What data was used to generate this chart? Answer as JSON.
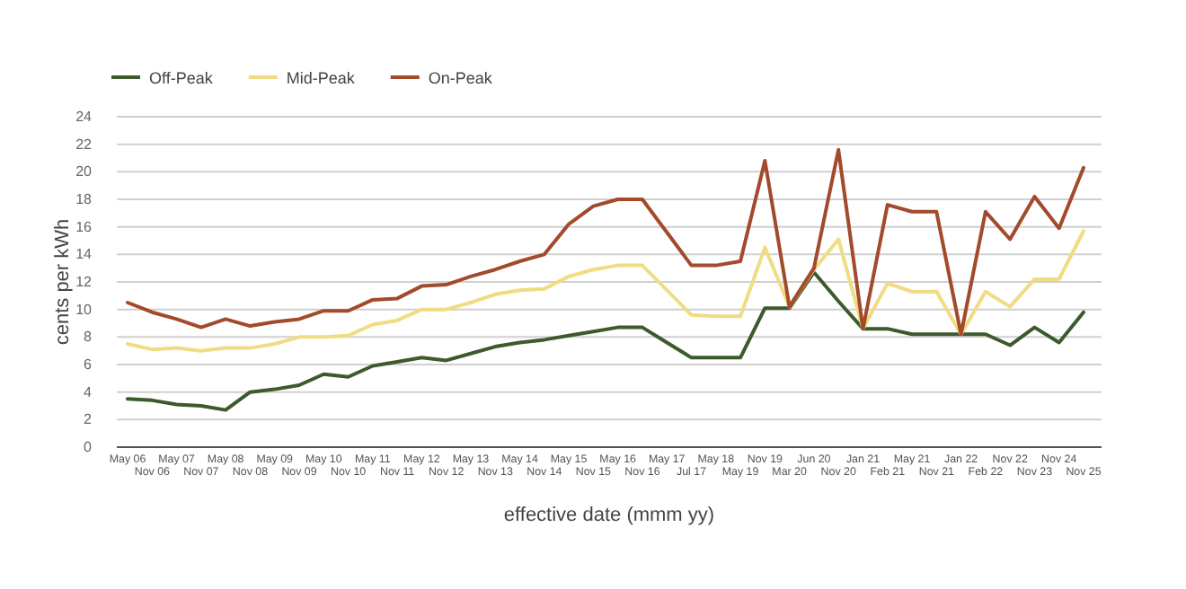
{
  "chart_data": {
    "type": "line",
    "xlabel": "effective date (mmm yy)",
    "ylabel": "cents per kWh",
    "categories": [
      "May 06",
      "Nov 06",
      "May 07",
      "Nov 07",
      "May 08",
      "Nov 08",
      "May 09",
      "Nov 09",
      "May 10",
      "Nov 10",
      "May 11",
      "Nov 11",
      "May 12",
      "Nov 12",
      "May 13",
      "Nov 13",
      "May 14",
      "Nov 14",
      "May 15",
      "Nov 15",
      "May 16",
      "Nov 16",
      "May 17",
      "Jul 17",
      "May 18",
      "May 19",
      "Nov 19",
      "Mar 20",
      "Jun 20",
      "Nov 20",
      "Jan 21",
      "Feb 21",
      "May 21",
      "Nov 21",
      "Jan 22",
      "Feb 22",
      "Nov 22",
      "Nov 23",
      "Nov 24",
      "Nov 25"
    ],
    "series": [
      {
        "name": "Off-Peak",
        "color": "#3d5a2a",
        "values": [
          3.5,
          3.4,
          3.1,
          3.0,
          2.7,
          4.0,
          4.2,
          4.5,
          5.3,
          5.1,
          5.9,
          6.2,
          6.5,
          6.3,
          6.8,
          7.3,
          7.6,
          7.8,
          8.1,
          8.4,
          8.7,
          8.7,
          7.6,
          6.5,
          6.5,
          6.5,
          10.1,
          10.1,
          12.7,
          10.6,
          8.6,
          8.6,
          8.2,
          8.2,
          8.2,
          8.2,
          7.4,
          8.7,
          7.6,
          9.8
        ]
      },
      {
        "name": "Mid-Peak",
        "color": "#f0dc82",
        "values": [
          7.5,
          7.1,
          7.2,
          7.0,
          7.2,
          7.2,
          7.5,
          8.0,
          8.0,
          8.1,
          8.9,
          9.2,
          10.0,
          10.0,
          10.5,
          11.1,
          11.4,
          11.5,
          12.4,
          12.9,
          13.2,
          13.2,
          11.4,
          9.6,
          9.5,
          9.5,
          14.5,
          10.2,
          12.9,
          15.1,
          8.6,
          11.9,
          11.3,
          11.3,
          8.2,
          11.3,
          10.2,
          12.2,
          12.2,
          15.7
        ]
      },
      {
        "name": "On-Peak",
        "color": "#a34a2c",
        "values": [
          10.5,
          9.8,
          9.3,
          8.7,
          9.3,
          8.8,
          9.1,
          9.3,
          9.9,
          9.9,
          10.7,
          10.8,
          11.7,
          11.8,
          12.4,
          12.9,
          13.5,
          14.0,
          16.2,
          17.5,
          18.0,
          18.0,
          15.6,
          13.2,
          13.2,
          13.5,
          20.8,
          10.2,
          13.0,
          21.6,
          8.6,
          17.6,
          17.1,
          17.1,
          8.2,
          17.1,
          15.1,
          18.2,
          15.9,
          20.3
        ]
      }
    ],
    "ylim": [
      0,
      24
    ],
    "yticks": [
      0,
      2,
      4,
      6,
      8,
      10,
      12,
      14,
      16,
      18,
      20,
      22,
      24
    ],
    "grid": "y",
    "legend": "top left",
    "marker": "none",
    "line_style": "solid"
  }
}
